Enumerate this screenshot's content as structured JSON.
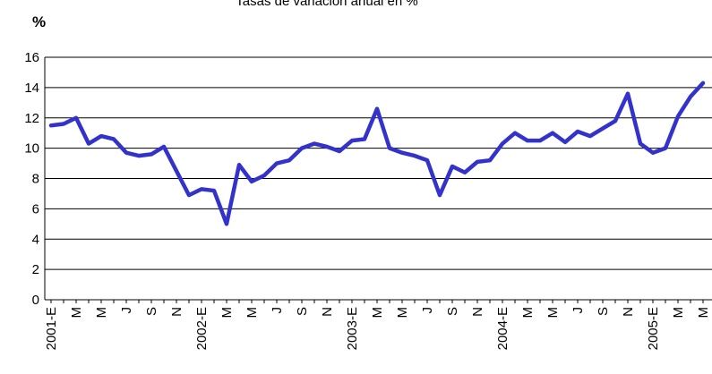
{
  "chart_data": {
    "type": "line",
    "title": "Tasas de variación anual en %",
    "y_label": "%",
    "categories": [
      "2001-E",
      null,
      "M",
      null,
      "M",
      null,
      "J",
      null,
      "S",
      null,
      "N",
      null,
      "2002-E",
      null,
      "M",
      null,
      "M",
      null,
      "J",
      null,
      "S",
      null,
      "N",
      null,
      "2003-E",
      null,
      "M",
      null,
      "M",
      null,
      "J",
      null,
      "S",
      null,
      "N",
      null,
      "2004-E",
      null,
      "M",
      null,
      "M",
      null,
      "J",
      null,
      "S",
      null,
      "N",
      null,
      "2005-E",
      null,
      "M",
      null,
      "M"
    ],
    "series": [
      {
        "name": "Tasas de variación anual",
        "color": "#3333cc",
        "values": [
          11.5,
          11.6,
          12.0,
          10.3,
          10.8,
          10.6,
          9.7,
          9.5,
          9.6,
          10.1,
          8.5,
          6.9,
          7.3,
          7.2,
          5.0,
          8.9,
          7.8,
          8.2,
          9.0,
          9.2,
          10.0,
          10.3,
          10.1,
          9.8,
          10.5,
          10.6,
          12.6,
          10.0,
          9.7,
          9.5,
          9.2,
          6.9,
          8.8,
          8.4,
          9.1,
          9.2,
          10.3,
          11.0,
          10.5,
          10.5,
          11.0,
          10.4,
          11.1,
          10.8,
          11.3,
          11.8,
          13.6,
          10.3,
          9.7,
          10.0,
          12.1,
          13.4,
          14.3
        ]
      }
    ],
    "ylim": [
      0,
      16
    ],
    "yticks": [
      0,
      2,
      4,
      6,
      8,
      10,
      12,
      14,
      16
    ],
    "grid": true
  }
}
